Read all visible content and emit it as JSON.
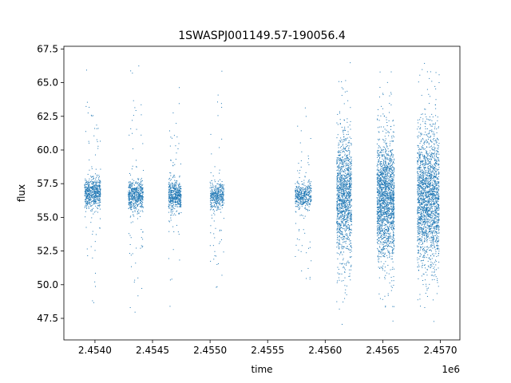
{
  "chart_data": {
    "type": "scatter",
    "title": "1SWASPJ001149.57-190056.4",
    "xlabel": "time",
    "ylabel": "flux",
    "x_offset_label": "1e6",
    "xlim": [
      2453730,
      2457170
    ],
    "ylim": [
      45.9,
      67.7
    ],
    "x_ticks": [
      2454000,
      2454500,
      2455000,
      2455500,
      2456000,
      2456500,
      2457000
    ],
    "x_tick_labels": [
      "2.4540",
      "2.4545",
      "2.4550",
      "2.4555",
      "2.4560",
      "2.4565",
      "2.4570"
    ],
    "y_ticks": [
      47.5,
      50.0,
      52.5,
      55.0,
      57.5,
      60.0,
      62.5,
      65.0,
      67.5
    ],
    "y_tick_labels": [
      "47.5",
      "50.0",
      "52.5",
      "55.0",
      "57.5",
      "60.0",
      "62.5",
      "65.0",
      "67.5"
    ],
    "grid": false,
    "marker_color": "#1f77b4",
    "seasons": [
      {
        "x_start": 2453910,
        "x_end": 2454050,
        "center": 56.8,
        "core_halfwidth": 0.9,
        "min": 46.7,
        "max": 66.0,
        "points": 620
      },
      {
        "x_start": 2454290,
        "x_end": 2454420,
        "center": 56.6,
        "core_halfwidth": 0.9,
        "min": 47.0,
        "max": 66.5,
        "points": 560
      },
      {
        "x_start": 2454640,
        "x_end": 2454750,
        "center": 56.6,
        "core_halfwidth": 0.9,
        "min": 47.0,
        "max": 65.0,
        "points": 520
      },
      {
        "x_start": 2455000,
        "x_end": 2455120,
        "center": 56.6,
        "core_halfwidth": 0.8,
        "min": 46.8,
        "max": 66.5,
        "points": 420
      },
      {
        "x_start": 2455740,
        "x_end": 2455880,
        "center": 56.6,
        "core_halfwidth": 0.8,
        "min": 49.5,
        "max": 64.0,
        "points": 460
      },
      {
        "x_start": 2456100,
        "x_end": 2456230,
        "center": 56.5,
        "core_halfwidth": 3.5,
        "min": 47.0,
        "max": 66.5,
        "points": 1300
      },
      {
        "x_start": 2456450,
        "x_end": 2456600,
        "center": 56.3,
        "core_halfwidth": 3.5,
        "min": 47.0,
        "max": 66.0,
        "points": 1800
      },
      {
        "x_start": 2456800,
        "x_end": 2456990,
        "center": 56.5,
        "core_halfwidth": 4.0,
        "min": 46.8,
        "max": 66.5,
        "points": 2000
      }
    ]
  }
}
